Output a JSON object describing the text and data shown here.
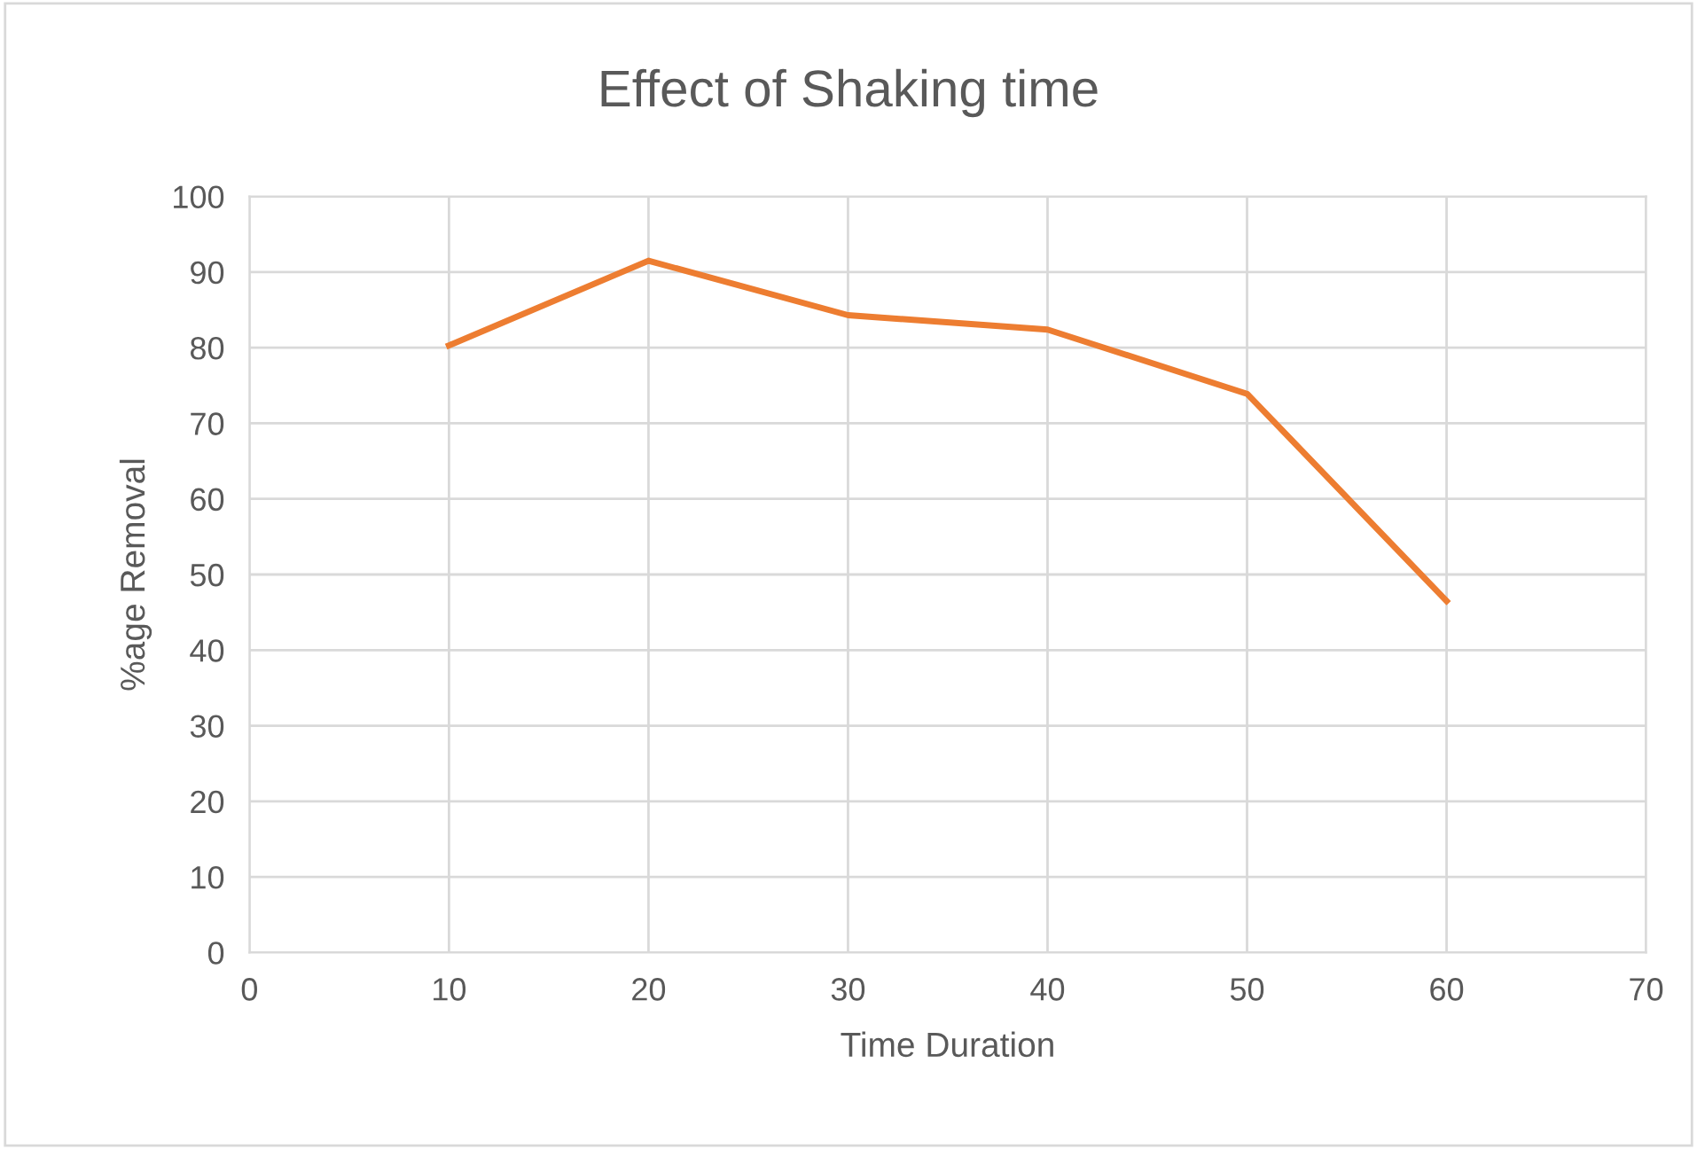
{
  "chart_data": {
    "type": "line",
    "title": "Effect of Shaking time",
    "xlabel": "Time Duration",
    "ylabel": "%age Removal",
    "x": [
      10,
      20,
      30,
      40,
      50,
      60
    ],
    "series": [
      {
        "color": "#ed7d31",
        "values": [
          80.3,
          91.5,
          84.3,
          82.4,
          73.9,
          46.5
        ]
      }
    ],
    "xlim": [
      0,
      70
    ],
    "xticks": [
      0,
      10,
      20,
      30,
      40,
      50,
      60,
      70
    ],
    "ylim": [
      0,
      100
    ],
    "yticks": [
      0,
      10,
      20,
      30,
      40,
      50,
      60,
      70,
      80,
      90,
      100
    ],
    "grid": true,
    "legend": false,
    "marker": "none",
    "line_style": "solid"
  }
}
